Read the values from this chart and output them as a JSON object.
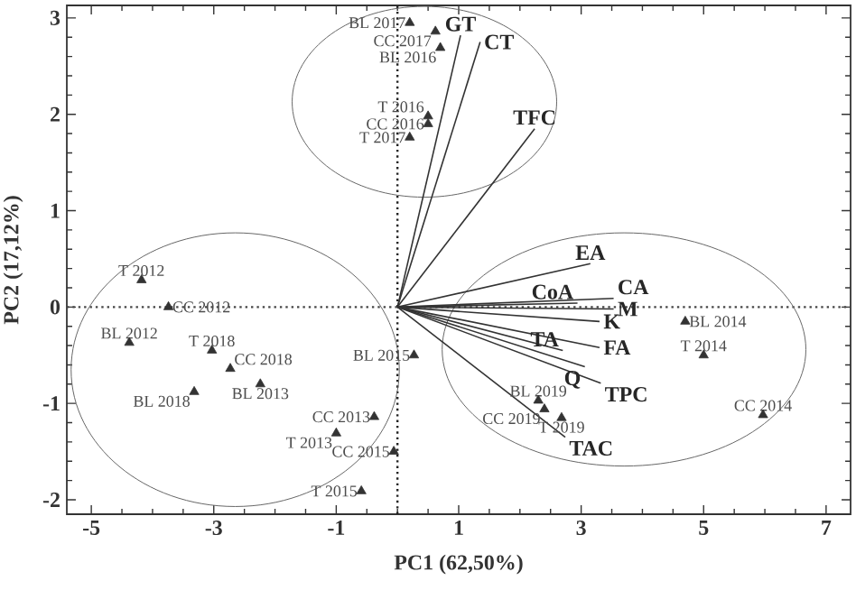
{
  "chart_data": {
    "type": "scatter",
    "xlabel": "PC1 (62,50%)",
    "ylabel": "PC2 (17,12%)",
    "xlim": [
      -5.4,
      7.4
    ],
    "ylim": [
      -2.15,
      3.13
    ],
    "xticks": [
      -5,
      -3,
      -1,
      1,
      3,
      5,
      7
    ],
    "yticks": [
      -2,
      -1,
      0,
      1,
      2,
      3
    ],
    "grid": false,
    "legend": false,
    "ref_lines": [
      {
        "axis": "x",
        "value": 0,
        "line_style": "dotted",
        "color": "#222222"
      },
      {
        "axis": "y",
        "value": 0,
        "line_style": "dotted",
        "color": "#444444"
      }
    ],
    "series": [
      {
        "type": "scatter",
        "marker": "triangle",
        "color": "#333333",
        "x": [
          0.2,
          0.62,
          0.7,
          0.5,
          0.5,
          0.2,
          -4.18,
          -3.74,
          -4.38,
          -3.03,
          -2.73,
          -2.24,
          -3.32,
          -0.38,
          -1.0,
          -0.06,
          -0.59,
          0.27,
          4.7,
          5.0,
          5.97,
          2.3,
          2.4,
          2.68
        ],
        "values": [
          2.95,
          2.86,
          2.69,
          1.98,
          1.9,
          1.76,
          0.28,
          0.0,
          -0.37,
          -0.45,
          -0.64,
          -0.8,
          -0.88,
          -1.14,
          -1.31,
          -1.5,
          -1.91,
          -0.5,
          -0.15,
          -0.5,
          -1.12,
          -0.97,
          -1.06,
          -1.15
        ]
      },
      {
        "type": "line",
        "marker": "none",
        "color": "#333333",
        "x": [
          0,
          1.03
        ],
        "values": [
          0,
          2.82
        ]
      },
      {
        "type": "line",
        "marker": "none",
        "color": "#333333",
        "x": [
          0,
          1.35
        ],
        "values": [
          0,
          2.75
        ]
      },
      {
        "type": "line",
        "marker": "none",
        "color": "#333333",
        "x": [
          0,
          2.24
        ],
        "values": [
          0,
          1.85
        ]
      },
      {
        "type": "line",
        "marker": "none",
        "color": "#333333",
        "x": [
          0,
          3.15
        ],
        "values": [
          0,
          0.45
        ]
      },
      {
        "type": "line",
        "marker": "none",
        "color": "#333333",
        "x": [
          0,
          2.94
        ],
        "values": [
          0,
          0.04
        ]
      },
      {
        "type": "line",
        "marker": "none",
        "color": "#333333",
        "x": [
          0,
          3.53
        ],
        "values": [
          0,
          0.09
        ]
      },
      {
        "type": "line",
        "marker": "none",
        "color": "#333333",
        "x": [
          0,
          3.53
        ],
        "values": [
          0,
          -0.02
        ]
      },
      {
        "type": "line",
        "marker": "none",
        "color": "#333333",
        "x": [
          0,
          3.3
        ],
        "values": [
          0,
          -0.15
        ]
      },
      {
        "type": "line",
        "marker": "none",
        "color": "#333333",
        "x": [
          0,
          3.3
        ],
        "values": [
          0,
          -0.42
        ]
      },
      {
        "type": "line",
        "marker": "none",
        "color": "#333333",
        "x": [
          0,
          2.7
        ],
        "values": [
          0,
          -0.45
        ]
      },
      {
        "type": "line",
        "marker": "none",
        "color": "#333333",
        "x": [
          0,
          3.06
        ],
        "values": [
          0,
          -0.62
        ]
      },
      {
        "type": "line",
        "marker": "none",
        "color": "#333333",
        "x": [
          0,
          3.32
        ],
        "values": [
          0,
          -0.79
        ]
      },
      {
        "type": "line",
        "marker": "none",
        "color": "#333333",
        "x": [
          0,
          2.74
        ],
        "values": [
          0,
          -1.35
        ]
      }
    ],
    "annotations": [
      {
        "text": "BL 2017",
        "x": 0.2,
        "y": 2.95
      },
      {
        "text": "CC 2017",
        "x": 0.62,
        "y": 2.86
      },
      {
        "text": "BL 2016",
        "x": 0.7,
        "y": 2.69
      },
      {
        "text": "T 2016",
        "x": 0.5,
        "y": 1.98
      },
      {
        "text": "CC 2016",
        "x": 0.5,
        "y": 1.9
      },
      {
        "text": "T 2017",
        "x": 0.2,
        "y": 1.76
      },
      {
        "text": "T 2012",
        "x": -4.18,
        "y": 0.28
      },
      {
        "text": "CC 2012",
        "x": -3.74,
        "y": 0.0
      },
      {
        "text": "BL 2012",
        "x": -4.38,
        "y": -0.37
      },
      {
        "text": "T 2018",
        "x": -3.03,
        "y": -0.45
      },
      {
        "text": "CC 2018",
        "x": -2.73,
        "y": -0.64
      },
      {
        "text": "BL 2013",
        "x": -2.24,
        "y": -0.8
      },
      {
        "text": "BL 2018",
        "x": -3.32,
        "y": -0.88
      },
      {
        "text": "CC 2013",
        "x": -0.38,
        "y": -1.14
      },
      {
        "text": "T 2013",
        "x": -1.0,
        "y": -1.31
      },
      {
        "text": "CC 2015",
        "x": -0.06,
        "y": -1.5
      },
      {
        "text": "T 2015",
        "x": -0.59,
        "y": -1.91
      },
      {
        "text": "BL 2015",
        "x": 0.27,
        "y": -0.5
      },
      {
        "text": "BL 2014",
        "x": 4.7,
        "y": -0.15
      },
      {
        "text": "T 2014",
        "x": 5.0,
        "y": -0.5
      },
      {
        "text": "CC 2014",
        "x": 5.97,
        "y": -1.12
      },
      {
        "text": "BL 2019",
        "x": 2.3,
        "y": -0.97
      },
      {
        "text": "CC 2019",
        "x": 2.4,
        "y": -1.06
      },
      {
        "text": "T 2019",
        "x": 2.68,
        "y": -1.15
      },
      {
        "text": "GT",
        "x": 1.03,
        "y": 2.82
      },
      {
        "text": "CT",
        "x": 1.35,
        "y": 2.75
      },
      {
        "text": "TFC",
        "x": 2.24,
        "y": 1.85
      },
      {
        "text": "EA",
        "x": 3.15,
        "y": 0.45
      },
      {
        "text": "CoA",
        "x": 2.94,
        "y": 0.04
      },
      {
        "text": "CA",
        "x": 3.53,
        "y": 0.09
      },
      {
        "text": "M",
        "x": 3.53,
        "y": -0.02
      },
      {
        "text": "K",
        "x": 3.3,
        "y": -0.15
      },
      {
        "text": "FA",
        "x": 3.3,
        "y": -0.42
      },
      {
        "text": "TA",
        "x": 2.7,
        "y": -0.45
      },
      {
        "text": "Q",
        "x": 3.06,
        "y": -0.62
      },
      {
        "text": "TPC",
        "x": 3.32,
        "y": -0.79
      },
      {
        "text": "TAC",
        "x": 2.74,
        "y": -1.35
      }
    ]
  }
}
